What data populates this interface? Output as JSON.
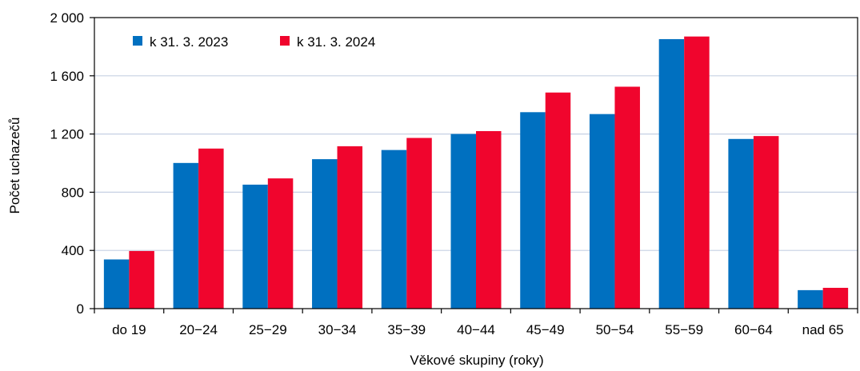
{
  "chart_data": {
    "type": "bar",
    "title": "",
    "xlabel": "Věkové skupiny (roky)",
    "ylabel": "Počet uchazečů",
    "ylim": [
      0,
      2000
    ],
    "yticks": [
      0,
      400,
      800,
      1200,
      1600,
      2000
    ],
    "ytick_labels": [
      "0",
      "400",
      "800",
      "1 200",
      "1 600",
      "2 000"
    ],
    "grid": "horizontal",
    "legend_position": "top-left",
    "categories": [
      "do 19",
      "20−24",
      "25−29",
      "30−34",
      "35−39",
      "40−44",
      "45−49",
      "50−54",
      "55−59",
      "60−64",
      "nad 65"
    ],
    "series": [
      {
        "name": "k 31. 3. 2023",
        "color": "#0070c0",
        "values": [
          338,
          1001,
          852,
          1027,
          1090,
          1200,
          1350,
          1337,
          1852,
          1166,
          127
        ]
      },
      {
        "name": "k 31. 3. 2024",
        "color": "#f0052d",
        "values": [
          396,
          1100,
          895,
          1116,
          1173,
          1220,
          1485,
          1525,
          1870,
          1186,
          143
        ]
      }
    ]
  }
}
